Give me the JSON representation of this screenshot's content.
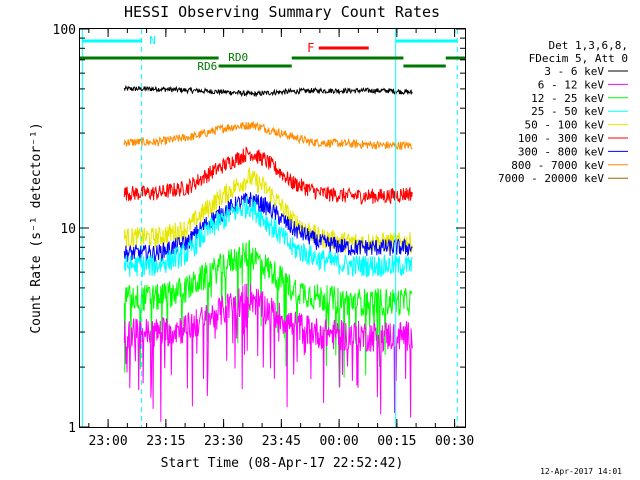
{
  "chart_data": {
    "type": "line",
    "title": "HESSI Observing Summary Count Rates",
    "xlabel": "Start Time (08-Apr-17 22:52:42)",
    "ylabel": "Count Rate (s⁻¹ detector⁻¹)",
    "y_scale": "log",
    "ylim": [
      1,
      100
    ],
    "x_unit": "minutes after 22:52:42",
    "xlim": [
      0,
      100
    ],
    "y_ticks": [
      {
        "label": "1",
        "value": 1
      },
      {
        "label": "10",
        "value": 10
      },
      {
        "label": "100",
        "value": 100
      }
    ],
    "x_ticks": [
      {
        "label": "23:00",
        "value": 7.3
      },
      {
        "label": "23:15",
        "value": 22.3
      },
      {
        "label": "23:30",
        "value": 37.3
      },
      {
        "label": "23:45",
        "value": 52.3
      },
      {
        "label": "00:00",
        "value": 67.3
      },
      {
        "label": "00:15",
        "value": 82.3
      },
      {
        "label": "00:30",
        "value": 97.3
      }
    ],
    "legend": {
      "position": "right",
      "header": [
        "Det 1,3,6,8,",
        "FDecim 5, Att 0"
      ],
      "entries": [
        {
          "name": "3 - 6 keV",
          "color": "#000000"
        },
        {
          "name": "6 - 12 keV",
          "color": "#ff00ff"
        },
        {
          "name": "12 - 25 keV",
          "color": "#00ff00"
        },
        {
          "name": "25 - 50 keV",
          "color": "#00ffff"
        },
        {
          "name": "50 - 100 keV",
          "color": "#e6e600"
        },
        {
          "name": "100 - 300 keV",
          "color": "#ff0000"
        },
        {
          "name": "300 - 800 keV",
          "color": "#0000ff"
        },
        {
          "name": "800 - 7000 keV",
          "color": "#ff8c00"
        },
        {
          "name": "7000 - 20000 keV",
          "color": "#996600"
        }
      ]
    },
    "series": [
      {
        "name": "3 - 6 keV",
        "color": "#000000",
        "x": [
          11.5,
          20,
          30,
          40,
          45,
          50,
          60,
          70,
          80,
          86.3
        ],
        "y": [
          50,
          50,
          49,
          48,
          47,
          48,
          49,
          49,
          49,
          48
        ]
      },
      {
        "name": "800 - 7000 keV",
        "color": "#ff8c00",
        "x": [
          11.5,
          20,
          30,
          38,
          45,
          52,
          60,
          70,
          80,
          86.3
        ],
        "y": [
          27,
          27,
          29,
          32,
          33,
          30,
          27,
          26.5,
          26,
          26
        ]
      },
      {
        "name": "100 - 300 keV",
        "color": "#ff0000",
        "x": [
          11.5,
          20,
          28,
          34,
          40,
          44,
          48,
          55,
          62,
          70,
          80,
          86.3
        ],
        "y": [
          15,
          15,
          16,
          19,
          22,
          24,
          22,
          17,
          15,
          14.5,
          14.5,
          15
        ]
      },
      {
        "name": "50 - 100 keV",
        "color": "#e6e600",
        "x": [
          11.5,
          20,
          28,
          34,
          40,
          44,
          48,
          55,
          62,
          70,
          80,
          86.3
        ],
        "y": [
          9,
          9,
          10,
          13,
          16,
          18,
          16,
          11,
          9,
          8.5,
          8.5,
          8.5
        ]
      },
      {
        "name": "300 - 800 keV",
        "color": "#0000ff",
        "x": [
          11.5,
          20,
          28,
          34,
          40,
          44,
          48,
          55,
          62,
          70,
          80,
          86.3
        ],
        "y": [
          7.5,
          7.5,
          8.5,
          11,
          13,
          14,
          13,
          10,
          8.5,
          8,
          8,
          8
        ]
      },
      {
        "name": "25 - 50 keV",
        "color": "#00ffff",
        "x": [
          11.5,
          20,
          28,
          34,
          40,
          44,
          48,
          55,
          62,
          70,
          80,
          86.3
        ],
        "y": [
          6.5,
          6.5,
          7.5,
          10,
          12,
          13,
          11,
          8,
          7,
          6.5,
          6.5,
          6.5
        ]
      },
      {
        "name": "12 - 25 keV",
        "color": "#00ff00",
        "x": [
          11.5,
          20,
          28,
          34,
          40,
          44,
          48,
          55,
          62,
          70,
          80,
          86.3
        ],
        "y": [
          4.5,
          4.5,
          5,
          6,
          7,
          7.5,
          6.5,
          5,
          4.5,
          4.3,
          4.3,
          4.3
        ]
      },
      {
        "name": "6 - 12 keV",
        "color": "#ff00ff",
        "x": [
          11.5,
          20,
          28,
          34,
          40,
          44,
          48,
          55,
          62,
          70,
          80,
          86.3
        ],
        "y": [
          3,
          3,
          3.2,
          3.6,
          4.2,
          4.6,
          4,
          3.3,
          3,
          2.9,
          2.9,
          2.9
        ]
      }
    ],
    "annotations": [
      {
        "label": "N",
        "color": "#00ffff"
      },
      {
        "label": "RD0",
        "color": "#007700"
      },
      {
        "label": "RD6",
        "color": "#007700"
      },
      {
        "label": "F",
        "color": "#ff0000"
      }
    ]
  },
  "footer_date": "12-Apr-2017 14:01"
}
